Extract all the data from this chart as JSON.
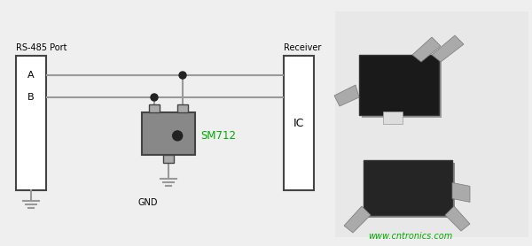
{
  "bg_color": "#efefef",
  "rs485_label": "RS-485 Port",
  "receiver_label": "Receiver",
  "gnd_label": "GND",
  "ic_label": "IC",
  "sm712_label": "SM712",
  "line_color": "#999999",
  "line_width": 1.5,
  "box_border_color": "#444444",
  "box_fill": "#ffffff",
  "tvs_fill": "#888888",
  "tvs_border": "#444444",
  "tvs_pin_fill": "#aaaaaa",
  "sm712_color": "#00aa00",
  "label_A": "A",
  "label_B": "B",
  "watermark": "www.cntronics.com",
  "watermark_color": "#00aa00",
  "dot_color": "#222222",
  "chip1_body": "#1a1a1a",
  "chip1_pin": "#aaaaaa",
  "chip2_body": "#252525",
  "chip2_pin": "#aaaaaa",
  "white_dot": "#cccccc",
  "photo_bg": "#e8e8e8"
}
